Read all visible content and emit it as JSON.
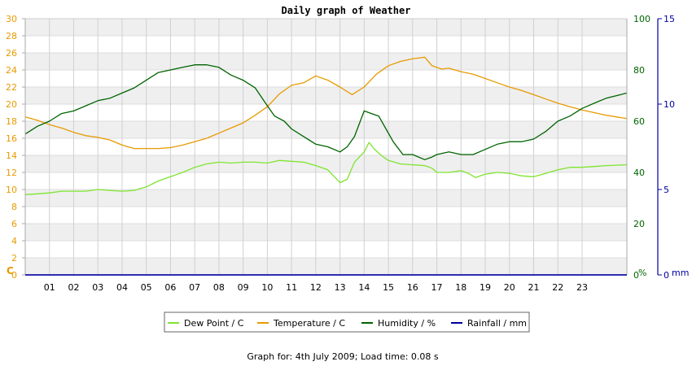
{
  "chart_data": {
    "type": "line",
    "title": "Daily graph of Weather",
    "footer": "Graph for: 4th July 2009; Load time: 0.08 s",
    "x_tick_labels": [
      "01",
      "02",
      "03",
      "04",
      "05",
      "06",
      "07",
      "08",
      "09",
      "10",
      "11",
      "12",
      "13",
      "14",
      "15",
      "16",
      "17",
      "18",
      "19",
      "20",
      "21",
      "22",
      "23"
    ],
    "xlim": [
      0,
      24.85
    ],
    "axes": {
      "left": {
        "unit_label": "C",
        "ticks": [
          "0",
          "2",
          "4",
          "6",
          "8",
          "10",
          "12",
          "14",
          "16",
          "18",
          "20",
          "22",
          "24",
          "26",
          "28",
          "30"
        ],
        "ylim": [
          0,
          30
        ],
        "color": "#e89a00"
      },
      "right_pct": {
        "unit_label": "%",
        "ticks": [
          "0",
          "20",
          "40",
          "60",
          "80",
          "100"
        ],
        "ylim": [
          0,
          100
        ],
        "color": "#006400"
      },
      "right_mm": {
        "unit_label": "mm",
        "ticks": [
          "0",
          "5",
          "10",
          "15"
        ],
        "ylim": [
          0,
          15
        ],
        "color": "#0000a0"
      }
    },
    "grid": true,
    "legend_placement": "bottom-center",
    "series": [
      {
        "name": "Dew Point / C",
        "axis": "left",
        "color": "#7ee52f",
        "points": [
          [
            0,
            9.4
          ],
          [
            0.5,
            9.5
          ],
          [
            1,
            9.6
          ],
          [
            1.5,
            9.8
          ],
          [
            2,
            9.8
          ],
          [
            2.5,
            9.8
          ],
          [
            3,
            10.0
          ],
          [
            3.5,
            9.9
          ],
          [
            4,
            9.8
          ],
          [
            4.5,
            9.9
          ],
          [
            5,
            10.3
          ],
          [
            5.5,
            11.0
          ],
          [
            6,
            11.5
          ],
          [
            6.5,
            12.0
          ],
          [
            7,
            12.6
          ],
          [
            7.5,
            13.0
          ],
          [
            8,
            13.2
          ],
          [
            8.5,
            13.1
          ],
          [
            9,
            13.2
          ],
          [
            9.5,
            13.2
          ],
          [
            10,
            13.1
          ],
          [
            10.5,
            13.4
          ],
          [
            11,
            13.3
          ],
          [
            11.5,
            13.2
          ],
          [
            12,
            12.8
          ],
          [
            12.5,
            12.3
          ],
          [
            13,
            10.8
          ],
          [
            13.3,
            11.2
          ],
          [
            13.6,
            13.2
          ],
          [
            14,
            14.4
          ],
          [
            14.2,
            15.5
          ],
          [
            14.4,
            14.8
          ],
          [
            14.7,
            14.0
          ],
          [
            15,
            13.4
          ],
          [
            15.5,
            13.0
          ],
          [
            16,
            12.9
          ],
          [
            16.5,
            12.8
          ],
          [
            16.8,
            12.5
          ],
          [
            17,
            12.0
          ],
          [
            17.5,
            12.0
          ],
          [
            18,
            12.2
          ],
          [
            18.3,
            11.9
          ],
          [
            18.6,
            11.4
          ],
          [
            19,
            11.8
          ],
          [
            19.5,
            12.0
          ],
          [
            20,
            11.9
          ],
          [
            20.5,
            11.6
          ],
          [
            21,
            11.5
          ],
          [
            21.5,
            11.9
          ],
          [
            22,
            12.3
          ],
          [
            22.5,
            12.6
          ],
          [
            23,
            12.6
          ],
          [
            23.5,
            12.7
          ],
          [
            24,
            12.8
          ],
          [
            24.85,
            12.9
          ]
        ]
      },
      {
        "name": "Temperature / C",
        "axis": "left",
        "color": "#e89a00",
        "points": [
          [
            0,
            18.5
          ],
          [
            0.5,
            18.1
          ],
          [
            1,
            17.6
          ],
          [
            1.5,
            17.2
          ],
          [
            2,
            16.7
          ],
          [
            2.5,
            16.3
          ],
          [
            3,
            16.1
          ],
          [
            3.5,
            15.8
          ],
          [
            4,
            15.2
          ],
          [
            4.5,
            14.8
          ],
          [
            5,
            14.8
          ],
          [
            5.5,
            14.8
          ],
          [
            6,
            14.9
          ],
          [
            6.5,
            15.2
          ],
          [
            7,
            15.6
          ],
          [
            7.5,
            16.0
          ],
          [
            8,
            16.6
          ],
          [
            8.5,
            17.2
          ],
          [
            9,
            17.8
          ],
          [
            9.5,
            18.7
          ],
          [
            10,
            19.7
          ],
          [
            10.5,
            21.2
          ],
          [
            11,
            22.2
          ],
          [
            11.5,
            22.5
          ],
          [
            12,
            23.3
          ],
          [
            12.5,
            22.8
          ],
          [
            13,
            22.0
          ],
          [
            13.5,
            21.1
          ],
          [
            14,
            22.0
          ],
          [
            14.5,
            23.5
          ],
          [
            15,
            24.5
          ],
          [
            15.5,
            25.0
          ],
          [
            16,
            25.3
          ],
          [
            16.5,
            25.5
          ],
          [
            16.8,
            24.5
          ],
          [
            17.2,
            24.1
          ],
          [
            17.5,
            24.2
          ],
          [
            18,
            23.8
          ],
          [
            18.5,
            23.5
          ],
          [
            19,
            23.0
          ],
          [
            19.5,
            22.5
          ],
          [
            20,
            22.0
          ],
          [
            20.5,
            21.6
          ],
          [
            21,
            21.1
          ],
          [
            21.5,
            20.6
          ],
          [
            22,
            20.1
          ],
          [
            22.5,
            19.7
          ],
          [
            23,
            19.3
          ],
          [
            23.5,
            19.0
          ],
          [
            24,
            18.7
          ],
          [
            24.85,
            18.3
          ]
        ]
      },
      {
        "name": "Humidity / %",
        "axis": "right_pct",
        "color": "#006400",
        "points": [
          [
            0,
            55
          ],
          [
            0.5,
            58
          ],
          [
            1,
            60
          ],
          [
            1.5,
            63
          ],
          [
            2,
            64
          ],
          [
            2.5,
            66
          ],
          [
            3,
            68
          ],
          [
            3.5,
            69
          ],
          [
            4,
            71
          ],
          [
            4.5,
            73
          ],
          [
            5,
            76
          ],
          [
            5.5,
            79
          ],
          [
            6,
            80
          ],
          [
            6.5,
            81
          ],
          [
            7,
            82
          ],
          [
            7.5,
            82
          ],
          [
            8,
            81
          ],
          [
            8.5,
            78
          ],
          [
            9,
            76
          ],
          [
            9.5,
            73
          ],
          [
            10,
            66
          ],
          [
            10.3,
            62
          ],
          [
            10.7,
            60
          ],
          [
            11,
            57
          ],
          [
            11.5,
            54
          ],
          [
            12,
            51
          ],
          [
            12.5,
            50
          ],
          [
            13,
            48
          ],
          [
            13.3,
            50
          ],
          [
            13.6,
            54
          ],
          [
            14,
            64
          ],
          [
            14.3,
            63
          ],
          [
            14.6,
            62
          ],
          [
            14.9,
            57
          ],
          [
            15.2,
            52
          ],
          [
            15.6,
            47
          ],
          [
            16,
            47
          ],
          [
            16.5,
            45
          ],
          [
            16.8,
            46
          ],
          [
            17,
            47
          ],
          [
            17.5,
            48
          ],
          [
            18,
            47
          ],
          [
            18.5,
            47
          ],
          [
            19,
            49
          ],
          [
            19.5,
            51
          ],
          [
            20,
            52
          ],
          [
            20.5,
            52
          ],
          [
            21,
            53
          ],
          [
            21.5,
            56
          ],
          [
            22,
            60
          ],
          [
            22.5,
            62
          ],
          [
            23,
            65
          ],
          [
            23.5,
            67
          ],
          [
            24,
            69
          ],
          [
            24.85,
            71
          ]
        ]
      },
      {
        "name": "Rainfall / mm",
        "axis": "right_mm",
        "color": "#0000a0",
        "points": [
          [
            0,
            0
          ],
          [
            24.85,
            0
          ]
        ]
      }
    ]
  }
}
